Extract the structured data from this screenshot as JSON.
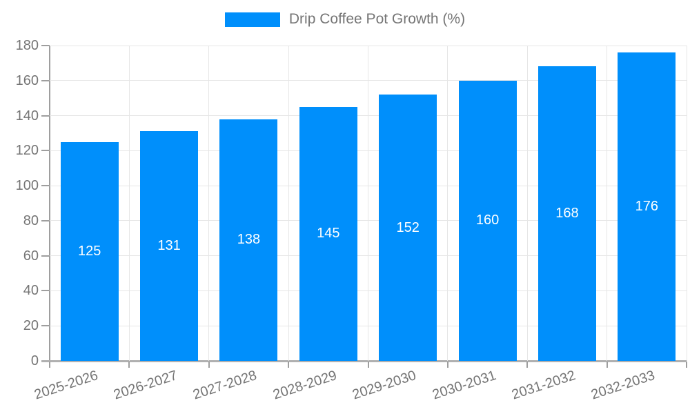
{
  "legend": {
    "label": "Drip Coffee Pot Growth (%)"
  },
  "colors": {
    "bar": "#008ffb",
    "bar_label": "#ffffff",
    "axis_text": "#757575",
    "grid": "#e6e6e6",
    "axis_line": "#9e9e9e",
    "x_axis_line": "#b0b0b0",
    "background": "#ffffff"
  },
  "chart_data": {
    "type": "bar",
    "title": "Drip Coffee Pot Growth (%)",
    "categories": [
      "2025-2026",
      "2026-2027",
      "2027-2028",
      "2028-2029",
      "2029-2030",
      "2030-2031",
      "2031-2032",
      "2032-2033"
    ],
    "values": [
      125,
      131,
      138,
      145,
      152,
      160,
      168,
      176
    ],
    "xlabel": "",
    "ylabel": "",
    "ylim": [
      0,
      180
    ],
    "ytick_step": 20,
    "ytick_labels": [
      "0",
      "20",
      "40",
      "60",
      "80",
      "100",
      "120",
      "140",
      "160",
      "180"
    ],
    "grid": true,
    "grid_vertical": true,
    "legend_position": "top",
    "bar_labels": "inside-center",
    "x_label_rotation_deg": -18
  }
}
